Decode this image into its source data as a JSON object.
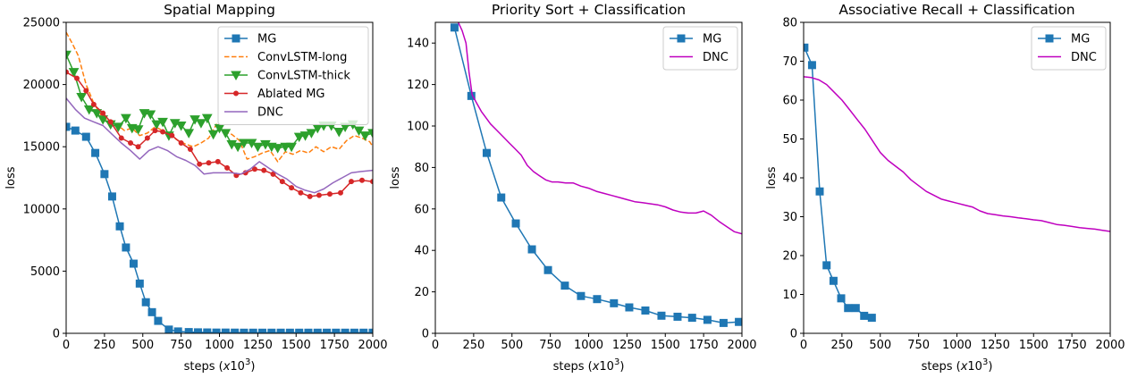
{
  "chart_data": [
    {
      "type": "line",
      "title": "Spatial Mapping",
      "xlabel": "steps (x10^3)",
      "ylabel": "loss",
      "xlim": [
        0,
        2000
      ],
      "ylim": [
        0,
        25000
      ],
      "xticks": [
        "0",
        "250",
        "500",
        "750",
        "1000",
        "1250",
        "1500",
        "1750",
        "2000"
      ],
      "yticks": [
        "0",
        "5000",
        "10000",
        "15000",
        "20000",
        "25000"
      ],
      "legend_position": "top-right",
      "series": [
        {
          "name": "MG",
          "color": "#1f77b4",
          "style": "solid",
          "marker": "square",
          "x": [
            0,
            60,
            130,
            190,
            250,
            300,
            350,
            390,
            440,
            480,
            520,
            560,
            600,
            670,
            730,
            800,
            860,
            920,
            980,
            1040,
            1100,
            1160,
            1220,
            1280,
            1340,
            1400,
            1460,
            1520,
            1580,
            1640,
            1700,
            1760,
            1820,
            1880,
            1940,
            2000
          ],
          "y": [
            16600,
            16300,
            15800,
            14500,
            12800,
            11000,
            8600,
            6900,
            5600,
            4000,
            2500,
            1700,
            1000,
            300,
            150,
            100,
            80,
            70,
            60,
            60,
            55,
            50,
            50,
            50,
            50,
            50,
            50,
            50,
            50,
            50,
            50,
            50,
            50,
            50,
            50,
            50
          ]
        },
        {
          "name": "ConvLSTM-long",
          "color": "#ff7f0e",
          "style": "dashed",
          "marker": "none",
          "x": [
            0,
            40,
            80,
            130,
            180,
            230,
            280,
            330,
            380,
            430,
            480,
            530,
            580,
            630,
            680,
            730,
            780,
            830,
            880,
            930,
            980,
            1030,
            1080,
            1130,
            1180,
            1230,
            1280,
            1330,
            1380,
            1430,
            1480,
            1530,
            1580,
            1630,
            1680,
            1730,
            1780,
            1830,
            1880,
            1930,
            1980,
            2000
          ],
          "y": [
            24200,
            23300,
            22300,
            20000,
            18500,
            17500,
            17000,
            16800,
            16300,
            16500,
            15900,
            16100,
            16600,
            16300,
            15900,
            15500,
            15200,
            15000,
            15300,
            15700,
            16800,
            16200,
            16000,
            15500,
            14000,
            14200,
            14500,
            14700,
            13800,
            14600,
            14400,
            14700,
            14500,
            15000,
            14600,
            15000,
            14800,
            15500,
            15900,
            15700,
            15400,
            15000
          ]
        },
        {
          "name": "ConvLSTM-thick",
          "color": "#2ca02c",
          "style": "solid",
          "marker": "triangle-down",
          "x": [
            0,
            50,
            100,
            150,
            200,
            240,
            290,
            340,
            390,
            430,
            470,
            510,
            550,
            590,
            630,
            670,
            710,
            750,
            800,
            840,
            880,
            920,
            960,
            1000,
            1040,
            1080,
            1120,
            1160,
            1210,
            1250,
            1300,
            1340,
            1380,
            1430,
            1470,
            1520,
            1560,
            1600,
            1640,
            1680,
            1730,
            1780,
            1820,
            1870,
            1910,
            1950,
            2000
          ],
          "y": [
            22400,
            21000,
            19000,
            18000,
            17700,
            17200,
            16800,
            16600,
            17300,
            16500,
            16400,
            17700,
            17600,
            16800,
            17000,
            15900,
            16900,
            16700,
            16100,
            17200,
            16900,
            17300,
            16000,
            16500,
            16100,
            15200,
            15000,
            15300,
            15300,
            15000,
            15200,
            15000,
            14900,
            15000,
            15000,
            15800,
            15900,
            16100,
            16500,
            16700,
            16700,
            16200,
            16600,
            16800,
            16300,
            15900,
            16100
          ]
        },
        {
          "name": "Ablated MG",
          "color": "#d62728",
          "style": "solid",
          "marker": "dot",
          "x": [
            0,
            70,
            130,
            180,
            240,
            290,
            360,
            420,
            470,
            530,
            580,
            630,
            690,
            750,
            810,
            870,
            930,
            990,
            1050,
            1110,
            1170,
            1230,
            1290,
            1350,
            1410,
            1470,
            1530,
            1590,
            1650,
            1720,
            1790,
            1860,
            1930,
            2000
          ],
          "y": [
            21000,
            20500,
            19500,
            18400,
            17700,
            17000,
            15700,
            15300,
            15000,
            15700,
            16300,
            16200,
            15900,
            15300,
            14800,
            13600,
            13700,
            13800,
            13300,
            12700,
            12900,
            13200,
            13100,
            12800,
            12200,
            11700,
            11300,
            11000,
            11100,
            11200,
            11300,
            12200,
            12300,
            12200
          ]
        },
        {
          "name": "DNC",
          "color": "#9467bd",
          "style": "solid",
          "marker": "none",
          "x": [
            0,
            60,
            120,
            180,
            240,
            300,
            360,
            420,
            480,
            540,
            600,
            660,
            720,
            780,
            840,
            900,
            960,
            1020,
            1080,
            1140,
            1200,
            1260,
            1320,
            1380,
            1440,
            1500,
            1560,
            1620,
            1680,
            1740,
            1800,
            1860,
            1920,
            2000
          ],
          "y": [
            18900,
            18000,
            17300,
            17000,
            16700,
            16000,
            15300,
            14700,
            14000,
            14700,
            15000,
            14700,
            14200,
            13900,
            13500,
            12800,
            12900,
            12900,
            12900,
            12800,
            13200,
            13800,
            13300,
            12800,
            12400,
            11800,
            11500,
            11300,
            11600,
            12100,
            12500,
            12900,
            13000,
            13100
          ]
        }
      ]
    },
    {
      "type": "line",
      "title": "Priority Sort + Classification",
      "xlabel": "steps (x10^3)",
      "ylabel": "loss",
      "xlim": [
        0,
        2000
      ],
      "ylim": [
        0,
        150
      ],
      "xticks": [
        "0",
        "250",
        "500",
        "750",
        "1000",
        "1250",
        "1500",
        "1750",
        "2000"
      ],
      "yticks": [
        "0",
        "20",
        "40",
        "60",
        "80",
        "100",
        "120",
        "140"
      ],
      "legend_position": "top-right",
      "series": [
        {
          "name": "MG",
          "color": "#1f77b4",
          "style": "solid",
          "marker": "square",
          "x": [
            125,
            235,
            335,
            430,
            525,
            630,
            735,
            845,
            950,
            1055,
            1165,
            1265,
            1370,
            1475,
            1580,
            1675,
            1775,
            1880,
            1980
          ],
          "y": [
            147.5,
            114.5,
            87,
            65.5,
            53,
            40.5,
            30.5,
            23,
            18,
            16.5,
            14.5,
            12.5,
            11,
            8.5,
            8,
            7.5,
            6.5,
            5,
            5.5
          ]
        },
        {
          "name": "DNC",
          "color": "#bf00bf",
          "style": "solid",
          "marker": "none",
          "x": [
            150,
            175,
            200,
            220,
            240,
            270,
            300,
            330,
            360,
            400,
            440,
            480,
            520,
            560,
            600,
            640,
            680,
            720,
            760,
            800,
            850,
            900,
            950,
            1000,
            1050,
            1100,
            1150,
            1200,
            1250,
            1300,
            1350,
            1400,
            1450,
            1500,
            1550,
            1600,
            1650,
            1700,
            1750,
            1800,
            1850,
            1900,
            1950,
            2000
          ],
          "y": [
            150,
            146,
            140,
            126,
            115,
            111,
            107,
            104,
            101,
            98,
            95,
            92,
            89,
            86,
            81,
            78,
            76,
            74,
            73,
            73,
            72.5,
            72.5,
            71,
            70,
            68.5,
            67.5,
            66.5,
            65.5,
            64.5,
            63.5,
            63,
            62.5,
            62,
            61,
            59.5,
            58.5,
            58,
            58,
            59,
            57,
            54,
            51.5,
            49,
            48
          ]
        }
      ]
    },
    {
      "type": "line",
      "title": "Associative Recall + Classification",
      "xlabel": "steps (x10^3)",
      "ylabel": "loss",
      "xlim": [
        0,
        2000
      ],
      "ylim": [
        0,
        80
      ],
      "xticks": [
        "0",
        "250",
        "500",
        "750",
        "1000",
        "1250",
        "1500",
        "1750",
        "2000"
      ],
      "yticks": [
        "0",
        "10",
        "20",
        "30",
        "40",
        "50",
        "60",
        "70",
        "80"
      ],
      "legend_position": "top-right",
      "series": [
        {
          "name": "MG",
          "color": "#1f77b4",
          "style": "solid",
          "marker": "square",
          "x": [
            5,
            55,
            105,
            150,
            195,
            245,
            290,
            340,
            395,
            445
          ],
          "y": [
            73.5,
            69,
            36.5,
            17.5,
            13.5,
            9,
            6.5,
            6.5,
            4.5,
            4
          ]
        },
        {
          "name": "DNC",
          "color": "#bf00bf",
          "style": "solid",
          "marker": "none",
          "x": [
            0,
            50,
            100,
            150,
            200,
            250,
            300,
            350,
            400,
            450,
            500,
            550,
            600,
            650,
            700,
            750,
            800,
            850,
            900,
            950,
            1000,
            1050,
            1100,
            1150,
            1200,
            1250,
            1300,
            1350,
            1400,
            1450,
            1500,
            1550,
            1600,
            1650,
            1700,
            1750,
            1800,
            1850,
            1900,
            1950,
            2000
          ],
          "y": [
            66,
            65.8,
            65.2,
            64,
            62,
            60,
            57.5,
            55,
            52.5,
            49.5,
            46.5,
            44.5,
            43,
            41.5,
            39.5,
            38,
            36.5,
            35.5,
            34.5,
            34,
            33.5,
            33,
            32.5,
            31.5,
            30.8,
            30.5,
            30.2,
            30,
            29.7,
            29.5,
            29.2,
            29,
            28.5,
            28,
            27.8,
            27.5,
            27.2,
            27,
            26.8,
            26.5,
            26.2
          ]
        }
      ]
    }
  ]
}
